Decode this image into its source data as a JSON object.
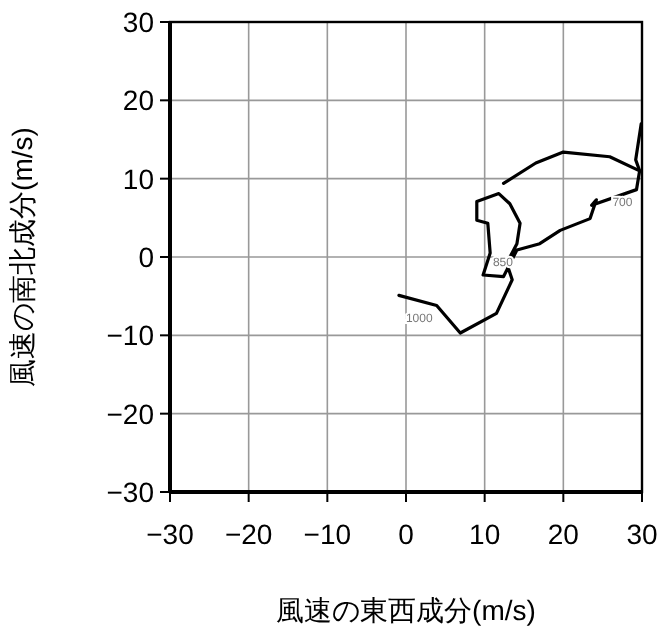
{
  "chart_data": {
    "type": "line",
    "xlabel": "風速の東西成分(m/s)",
    "ylabel": "風速の南北成分(m/s)",
    "xlim": [
      -30,
      30
    ],
    "ylim": [
      -30,
      30
    ],
    "xticks": [
      -30,
      -20,
      -10,
      0,
      10,
      20,
      30
    ],
    "yticks": [
      -30,
      -20,
      -10,
      0,
      10,
      20,
      30
    ],
    "grid": true,
    "series": [
      {
        "color": "#000000",
        "x": [
          -0.9,
          3.9,
          6.9,
          11.5,
          13.5,
          12.8,
          14.1,
          14.5,
          13.2,
          11.8,
          9.0,
          9.0,
          10.4,
          10.7,
          9.8,
          12.4,
          14.1,
          17,
          19.6,
          23.4,
          24.2,
          23.6,
          29.3,
          29.7,
          25.9,
          20,
          16.5,
          12.4
        ],
        "values": [
          -4.9,
          -6.2,
          -9.7,
          -7.2,
          -2.9,
          -0.8,
          1.7,
          4.3,
          6.8,
          8.1,
          7.1,
          4.7,
          4.3,
          0.5,
          -2.3,
          -2.5,
          0.9,
          1.7,
          3.4,
          4.9,
          7.3,
          6.6,
          8.6,
          11,
          12.8,
          13.4,
          12,
          9.4
        ]
      },
      {
        "color": "#000000",
        "x": [
          29.7,
          29.2,
          29.9
        ],
        "values": [
          11,
          12.4,
          17
        ]
      }
    ],
    "annotations": [
      {
        "text": "1000",
        "x": 3.9,
        "y": -6.2
      },
      {
        "text": "850",
        "x": 14.1,
        "y": 0.9
      },
      {
        "text": "700",
        "x": 29.3,
        "y": 8.6
      }
    ]
  }
}
